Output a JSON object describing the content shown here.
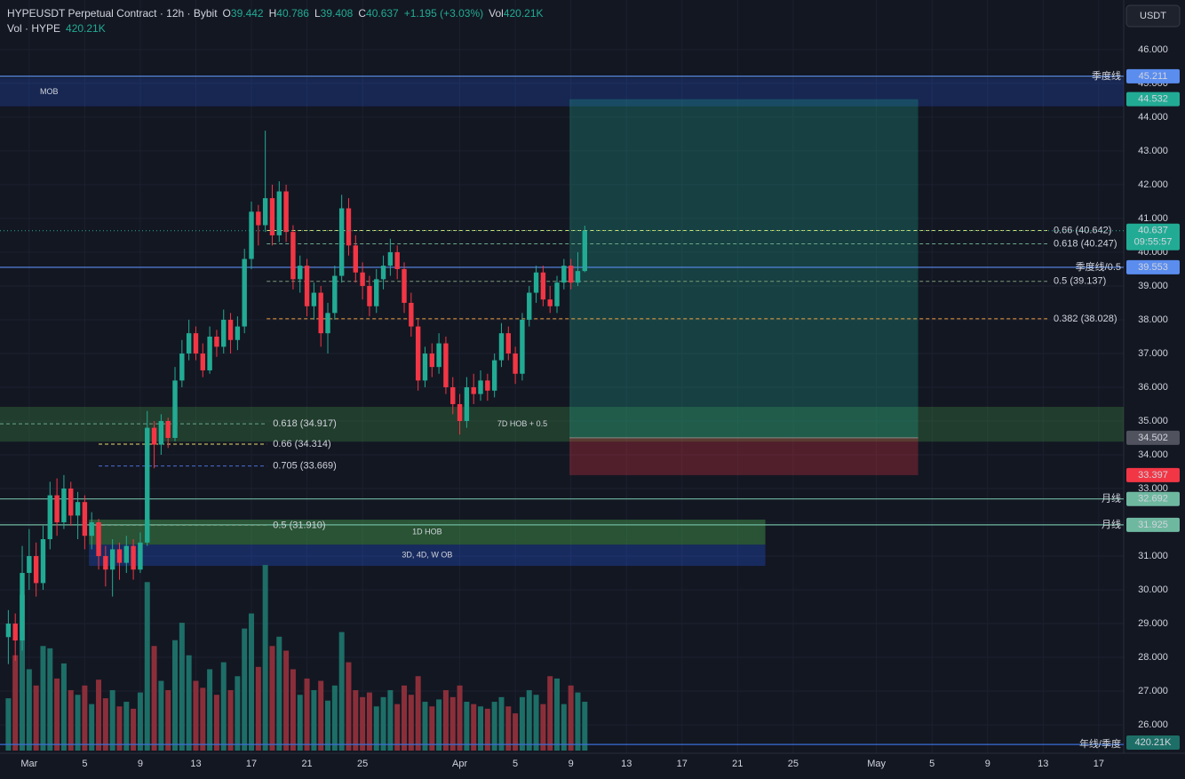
{
  "header": {
    "title": "HYPEUSDT Perpetual Contract · 12h · Bybit",
    "keys": [
      "O",
      "H",
      "L",
      "C"
    ],
    "change": "+1.195 (+3.03%)",
    "vol_key": "Vol",
    "vol_title": "Vol · HYPE",
    "currency": "USDT"
  },
  "chart_data": {
    "type": "candlestick",
    "x": [
      -1.5,
      -1,
      -0.5,
      0,
      0.5,
      1,
      1.5,
      2,
      2.5,
      3,
      3.5,
      4,
      4.5,
      5,
      5.5,
      6,
      6.5,
      7,
      7.5,
      8,
      8.5,
      9,
      9.5,
      10,
      10.5,
      11,
      11.5,
      12,
      12.5,
      13,
      13.5,
      14,
      14.5,
      15,
      15.5,
      16,
      16.5,
      17,
      17.5,
      18,
      18.5,
      19,
      19.5,
      20,
      20.5,
      21,
      21.5,
      22,
      22.5,
      23,
      23.5,
      24,
      24.5,
      25,
      25.5,
      26,
      26.5,
      27,
      27.5,
      28,
      28.5,
      29,
      29.5,
      30,
      30.5,
      31,
      31.5,
      32,
      32.5,
      33,
      33.5,
      34,
      34.5,
      35,
      35.5,
      36,
      36.5,
      37,
      37.5,
      38,
      38.5,
      39,
      39.5,
      40
    ],
    "open": [
      28.6,
      29.0,
      28.5,
      30.5,
      31.0,
      30.2,
      31.5,
      32.8,
      32.0,
      33.0,
      32.2,
      32.6,
      31.6,
      32.0,
      31.0,
      30.6,
      31.2,
      30.8,
      31.3,
      30.6,
      31.4,
      34.8,
      34.3,
      35.0,
      34.5,
      36.2,
      37.0,
      37.6,
      37.0,
      36.5,
      37.5,
      37.2,
      38.0,
      37.4,
      37.8,
      39.8,
      41.2,
      40.8,
      41.6,
      40.5,
      41.8,
      40.6,
      39.2,
      39.6,
      38.4,
      38.8,
      37.6,
      38.2,
      39.3,
      41.3,
      40.2,
      39.4,
      39.0,
      38.4,
      39.2,
      39.6,
      40.0,
      39.5,
      38.5,
      37.8,
      36.2,
      37.0,
      36.6,
      37.3,
      36.0,
      35.5,
      35.0,
      36.0,
      35.8,
      36.2,
      35.9,
      36.8,
      37.6,
      37.0,
      36.4,
      38.0,
      38.8,
      39.4,
      38.6,
      38.4,
      39.1,
      39.6,
      39.1,
      39.442
    ],
    "high": [
      29.4,
      29.3,
      31.3,
      31.8,
      31.4,
      31.9,
      33.2,
      33.3,
      33.4,
      33.2,
      32.9,
      32.8,
      32.3,
      32.1,
      31.3,
      31.5,
      31.4,
      31.6,
      31.5,
      31.7,
      35.3,
      35.0,
      35.2,
      35.1,
      36.6,
      37.4,
      38.0,
      37.8,
      37.3,
      37.8,
      37.7,
      38.3,
      38.2,
      38.1,
      40.1,
      41.5,
      41.4,
      43.6,
      42.0,
      42.1,
      42.0,
      40.8,
      39.9,
      39.8,
      39.1,
      39.0,
      38.5,
      39.6,
      41.7,
      41.6,
      40.5,
      39.7,
      39.3,
      39.5,
      39.9,
      40.4,
      40.2,
      39.7,
      38.8,
      38.0,
      37.2,
      37.3,
      37.6,
      37.5,
      36.3,
      35.8,
      36.3,
      36.4,
      36.5,
      36.4,
      37.0,
      37.9,
      37.8,
      37.2,
      38.2,
      39.0,
      39.6,
      39.6,
      39.0,
      39.3,
      39.8,
      39.8,
      40.0,
      40.786
    ],
    "low": [
      27.8,
      27.9,
      28.2,
      30.0,
      29.8,
      30.0,
      31.2,
      31.6,
      31.8,
      31.9,
      31.5,
      31.2,
      31.2,
      30.6,
      30.1,
      29.8,
      30.3,
      30.5,
      30.3,
      30.5,
      31.3,
      33.6,
      34.0,
      34.2,
      34.4,
      36.0,
      36.8,
      36.8,
      36.3,
      36.4,
      36.9,
      37.0,
      37.0,
      37.1,
      37.6,
      39.5,
      40.2,
      40.6,
      40.2,
      40.3,
      40.3,
      38.9,
      38.8,
      38.1,
      38.0,
      37.2,
      37.0,
      38.0,
      39.1,
      39.9,
      39.1,
      38.6,
      38.1,
      38.2,
      38.9,
      39.3,
      39.2,
      38.2,
      37.5,
      35.9,
      36.0,
      36.3,
      36.4,
      35.8,
      35.2,
      34.6,
      34.8,
      35.5,
      35.6,
      35.6,
      35.7,
      36.6,
      36.8,
      36.1,
      36.2,
      37.8,
      38.5,
      38.4,
      38.2,
      38.2,
      38.9,
      38.9,
      39.0,
      39.408
    ],
    "close": [
      29.0,
      28.5,
      30.5,
      31.0,
      30.2,
      31.5,
      32.8,
      32.0,
      33.0,
      32.2,
      32.6,
      31.6,
      32.0,
      31.0,
      30.6,
      31.2,
      30.8,
      31.3,
      30.6,
      31.4,
      34.8,
      34.3,
      35.0,
      34.5,
      36.2,
      37.0,
      37.6,
      37.0,
      36.5,
      37.5,
      37.2,
      38.0,
      37.4,
      37.8,
      39.8,
      41.2,
      40.8,
      41.6,
      40.5,
      41.8,
      40.6,
      39.2,
      39.6,
      38.4,
      38.8,
      37.6,
      38.2,
      39.3,
      41.3,
      40.2,
      39.4,
      39.0,
      38.4,
      39.2,
      39.6,
      40.0,
      39.5,
      38.5,
      37.8,
      36.2,
      37.0,
      36.6,
      37.3,
      36.0,
      35.5,
      35.0,
      36.0,
      35.8,
      36.2,
      35.9,
      36.8,
      37.6,
      37.0,
      36.4,
      38.0,
      38.8,
      39.4,
      38.6,
      38.4,
      39.1,
      39.6,
      39.1,
      39.442,
      40.637
    ],
    "volume": [
      450,
      820,
      1340,
      700,
      560,
      900,
      880,
      620,
      750,
      520,
      480,
      560,
      400,
      610,
      450,
      520,
      380,
      420,
      360,
      500,
      1450,
      900,
      600,
      520,
      950,
      1100,
      820,
      600,
      540,
      700,
      480,
      760,
      520,
      640,
      1050,
      1180,
      720,
      1597,
      900,
      980,
      860,
      700,
      480,
      620,
      520,
      600,
      430,
      560,
      1020,
      760,
      520,
      460,
      500,
      380,
      460,
      520,
      400,
      560,
      480,
      640,
      420,
      380,
      440,
      520,
      460,
      560,
      420,
      400,
      380,
      360,
      420,
      460,
      380,
      320,
      460,
      520,
      480,
      400,
      640,
      620,
      400,
      560,
      500,
      420.21
    ],
    "volume_label": "420.21K",
    "volume_ylim": [
      0,
      6000
    ],
    "up_color": "#22ab94",
    "down_color": "#f23645",
    "up_volume_color": "#1d6e66",
    "down_volume_color": "#8a2f3a",
    "xlim": [
      -2.1,
      78.8
    ],
    "xticks": [
      {
        "value": 0,
        "label": "Mar"
      },
      {
        "value": 4,
        "label": "5"
      },
      {
        "value": 8,
        "label": "9"
      },
      {
        "value": 12,
        "label": "13"
      },
      {
        "value": 16,
        "label": "17"
      },
      {
        "value": 20,
        "label": "21"
      },
      {
        "value": 24,
        "label": "25"
      },
      {
        "value": 31,
        "label": "Apr"
      },
      {
        "value": 35,
        "label": "5"
      },
      {
        "value": 39,
        "label": "9"
      },
      {
        "value": 43,
        "label": "13"
      },
      {
        "value": 47,
        "label": "17"
      },
      {
        "value": 51,
        "label": "21"
      },
      {
        "value": 55,
        "label": "25"
      },
      {
        "value": 61,
        "label": "May"
      },
      {
        "value": 65,
        "label": "5"
      },
      {
        "value": 69,
        "label": "9"
      },
      {
        "value": 73,
        "label": "13"
      },
      {
        "value": 77,
        "label": "17"
      }
    ],
    "ylim": [
      25.16,
      47.47
    ],
    "yticks": [
      {
        "value": 26,
        "label": "26.000"
      },
      {
        "value": 27,
        "label": "27.000"
      },
      {
        "value": 28,
        "label": "28.000"
      },
      {
        "value": 29,
        "label": "29.000"
      },
      {
        "value": 30,
        "label": "30.000"
      },
      {
        "value": 31,
        "label": "31.000"
      },
      {
        "value": 32,
        "label": "32.000"
      },
      {
        "value": 33,
        "label": "33.000"
      },
      {
        "value": 34,
        "label": "34.000"
      },
      {
        "value": 35,
        "label": "35.000"
      },
      {
        "value": 36,
        "label": "36.000"
      },
      {
        "value": 37,
        "label": "37.000"
      },
      {
        "value": 38,
        "label": "38.000"
      },
      {
        "value": 39,
        "label": "39.000"
      },
      {
        "value": 40,
        "label": "40.000"
      },
      {
        "value": 41,
        "label": "41.000"
      },
      {
        "value": 42,
        "label": "42.000"
      },
      {
        "value": 43,
        "label": "43.000"
      },
      {
        "value": 44,
        "label": "44.000"
      },
      {
        "value": 45,
        "label": "45.000"
      },
      {
        "value": 46,
        "label": "46.000"
      }
    ],
    "last_price_label": "40.637",
    "countdown": "09:55:57",
    "zones": [
      {
        "label": "MOB",
        "top": 45.16,
        "bottom": 44.32,
        "x": [
          -2.1,
          78.8
        ],
        "color": "rgba(41,98,255,0.22)"
      },
      {
        "label": "7D HOB + 0.5",
        "top": 35.42,
        "bottom": 34.39,
        "x": [
          -2.1,
          78.8
        ],
        "color": "rgba(76,175,80,0.25)"
      },
      {
        "label": "1D HOB",
        "top": 32.08,
        "bottom": 31.34,
        "x": [
          4.3,
          53
        ],
        "color": "rgba(76,175,80,0.4)"
      },
      {
        "label": "3D, 4D, W OB",
        "top": 31.34,
        "bottom": 30.71,
        "x": [
          4.3,
          53
        ],
        "color": "rgba(41,98,255,0.28)"
      }
    ],
    "position": {
      "x": [
        38.9,
        64
      ],
      "target": 44.532,
      "entry": 34.502,
      "stop": 33.397,
      "target_label": "44.532",
      "entry_label": "34.502",
      "stop_label": "33.397"
    },
    "levels": [
      {
        "name": "季度线",
        "value": 45.211,
        "value_label": "45.211",
        "color": "#5b8def"
      },
      {
        "name": "季度线/0.5",
        "value": 39.553,
        "value_label": "39.553",
        "color": "#5b8def"
      },
      {
        "name": "月线",
        "value": 32.692,
        "value_label": "32.692",
        "color": "#6fb8a0"
      },
      {
        "name": "月线",
        "value": 31.925,
        "value_label": "31.925",
        "color": "#6fb8a0"
      },
      {
        "name": "年线/季度",
        "value": 25.42,
        "color": "#3a6fd8"
      }
    ],
    "fibs": [
      {
        "label": "0.66 (40.642)",
        "value": 40.642,
        "x": [
          17.1,
          73.3
        ],
        "color": "#e8dd6a"
      },
      {
        "label": "0.618 (40.247)",
        "value": 40.247,
        "x": [
          17.1,
          73.3
        ],
        "color": "#6aa88a"
      },
      {
        "label": "0.5 (39.137)",
        "value": 39.137,
        "x": [
          17.1,
          73.3
        ],
        "color": "#7d9a7a"
      },
      {
        "label": "0.382 (38.028)",
        "value": 38.028,
        "x": [
          17.1,
          73.3
        ],
        "color": "#f0a040"
      },
      {
        "label": "0.618 (34.917)",
        "value": 34.917,
        "x": [
          -2.1,
          17.1
        ],
        "color": "#6aa88a"
      },
      {
        "label": "0.66 (34.314)",
        "value": 34.314,
        "x": [
          5,
          17.1
        ],
        "color": "#e8dd6a"
      },
      {
        "label": "0.705 (33.669)",
        "value": 33.669,
        "x": [
          5,
          17.1
        ],
        "color": "#4a6fd8"
      },
      {
        "label": "0.5 (31.910)",
        "value": 31.91,
        "x": [
          4.3,
          17.1
        ],
        "color": "#7d9a7a"
      }
    ]
  }
}
